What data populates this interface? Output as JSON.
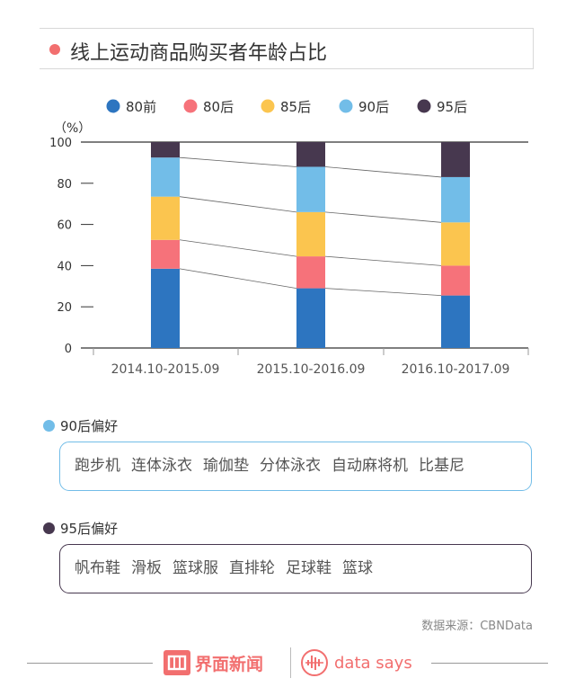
{
  "header": {
    "title": "线上运动商品购买者年龄占比"
  },
  "colors": {
    "accent": "#f26f6f",
    "series": [
      "#2d75c0",
      "#f6727a",
      "#fbc54f",
      "#72bde8",
      "#47384f"
    ]
  },
  "chart_data": {
    "type": "bar",
    "stacked": true,
    "unit_label": "（%）",
    "categories": [
      "2014.10-2015.09",
      "2015.10-2016.09",
      "2016.10-2017.09"
    ],
    "series": [
      {
        "name": "80前",
        "values": [
          38.5,
          29,
          25.5
        ]
      },
      {
        "name": "80后",
        "values": [
          14,
          15.5,
          14.5
        ]
      },
      {
        "name": "85后",
        "values": [
          21,
          21.5,
          21
        ]
      },
      {
        "name": "90后",
        "values": [
          19,
          22,
          22
        ]
      },
      {
        "name": "95后",
        "values": [
          7.5,
          12,
          17
        ]
      }
    ],
    "ylim": [
      0,
      100
    ],
    "yticks": [
      0,
      20,
      40,
      60,
      80,
      100
    ],
    "legend_position": "top",
    "connector_lines": true
  },
  "preferences": {
    "post90": {
      "heading": "90后偏好",
      "items": [
        "跑步机",
        "连体泳衣",
        "瑜伽垫",
        "分体泳衣",
        "自动麻将机",
        "比基尼"
      ]
    },
    "post95": {
      "heading": "95后偏好",
      "items": [
        "帆布鞋",
        "滑板",
        "篮球服",
        "直排轮",
        "足球鞋",
        "篮球"
      ]
    }
  },
  "source": "数据来源：CBNData",
  "footer": {
    "brand1": "界面新闻",
    "brand2": "data says"
  },
  "icons": [
    "title-dot-icon",
    "jiemian-logo-icon",
    "datasays-logo-icon"
  ]
}
